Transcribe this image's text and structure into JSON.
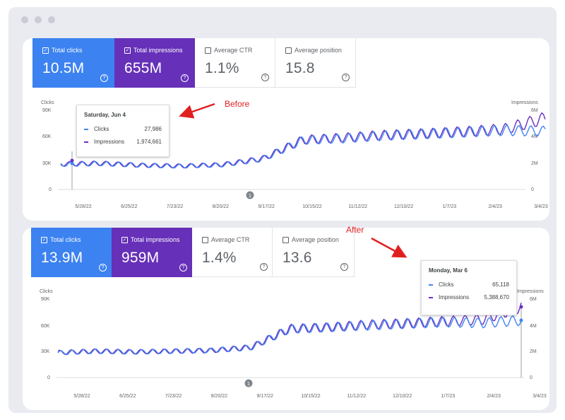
{
  "colors": {
    "clicks": "#4285f4",
    "impressions": "#6a2fc0",
    "before_after_label": "#e02020"
  },
  "x_ticks": [
    "5/28/22",
    "6/25/22",
    "7/23/22",
    "8/20/22",
    "9/17/22",
    "10/15/22",
    "11/12/22",
    "12/10/22",
    "1/7/23",
    "2/4/23",
    "3/4/23"
  ],
  "left_axis": {
    "title": "Clicks",
    "ticks": [
      "90K",
      "60K",
      "30K",
      "0"
    ]
  },
  "right_axis": {
    "title": "Impressions",
    "ticks": [
      "6M",
      "4M",
      "2M",
      "0"
    ]
  },
  "event_marker": "1",
  "before": {
    "annotation": "Before",
    "metrics": {
      "clicks": {
        "label": "Total clicks",
        "value": "10.5M"
      },
      "impressions": {
        "label": "Total impressions",
        "value": "655M"
      },
      "ctr": {
        "label": "Average CTR",
        "value": "1.1%"
      },
      "position": {
        "label": "Average position",
        "value": "15.8"
      }
    },
    "tooltip": {
      "date": "Saturday, Jun 4",
      "clicks_label": "Clicks",
      "clicks_value": "27,986",
      "impressions_label": "Impressions",
      "impressions_value": "1,974,661"
    }
  },
  "after": {
    "annotation": "After",
    "metrics": {
      "clicks": {
        "label": "Total clicks",
        "value": "13.9M"
      },
      "impressions": {
        "label": "Total impressions",
        "value": "959M"
      },
      "ctr": {
        "label": "Average CTR",
        "value": "1.4%"
      },
      "position": {
        "label": "Average position",
        "value": "13.6"
      }
    },
    "tooltip": {
      "date": "Monday, Mar 6",
      "clicks_label": "Clicks",
      "clicks_value": "65,118",
      "impressions_label": "Impressions",
      "impressions_value": "5,388,670"
    }
  },
  "chart_data": [
    {
      "type": "line",
      "title": "Before",
      "x_ticks": [
        "5/28/22",
        "6/25/22",
        "7/23/22",
        "8/20/22",
        "9/17/22",
        "10/15/22",
        "11/12/22",
        "12/10/22",
        "1/7/23",
        "2/4/23",
        "3/4/23"
      ],
      "ylabel": "Clicks",
      "ylim": [
        0,
        90000
      ],
      "y2label": "Impressions",
      "y2lim": [
        0,
        6000000
      ],
      "series": [
        {
          "name": "Clicks",
          "axis": "left",
          "values": [
            28000,
            29000,
            27000,
            26000,
            27500,
            34000,
            55000,
            57000,
            60000,
            62000,
            64000,
            66000,
            65000
          ]
        },
        {
          "name": "Impressions",
          "axis": "right",
          "values": [
            1900000,
            1950000,
            1800000,
            1750000,
            1850000,
            2300000,
            3700000,
            3850000,
            4050000,
            4150000,
            4300000,
            4500000,
            5300000
          ]
        }
      ]
    },
    {
      "type": "line",
      "title": "After",
      "x_ticks": [
        "5/28/22",
        "6/25/22",
        "7/23/22",
        "8/20/22",
        "9/17/22",
        "10/15/22",
        "11/12/22",
        "12/10/22",
        "1/7/23",
        "2/4/23",
        "3/4/23"
      ],
      "ylabel": "Clicks",
      "ylim": [
        0,
        90000
      ],
      "y2label": "Impressions",
      "y2lim": [
        0,
        6000000
      ],
      "series": [
        {
          "name": "Clicks",
          "axis": "left",
          "values": [
            28000,
            30000,
            29000,
            30000,
            31000,
            34000,
            55000,
            57000,
            59000,
            61000,
            63000,
            62000,
            65000
          ]
        },
        {
          "name": "Impressions",
          "axis": "right",
          "values": [
            1900000,
            2000000,
            1950000,
            2000000,
            2050000,
            2300000,
            3700000,
            3800000,
            4000000,
            4100000,
            4250000,
            4400000,
            5400000
          ]
        }
      ]
    }
  ]
}
